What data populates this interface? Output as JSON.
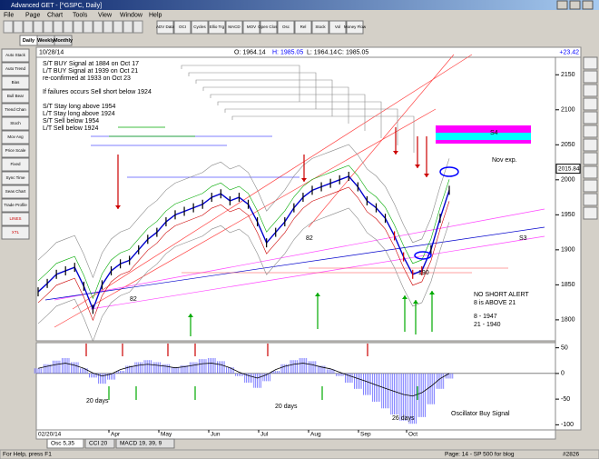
{
  "window": {
    "title": "Advanced GET - [^GSPC, Daily]"
  },
  "menu": [
    "File",
    "Page",
    "Chart",
    "Tools",
    "View",
    "Window",
    "Help"
  ],
  "toolbar": [
    "ADV Data",
    "OCI",
    "Cycles",
    "Ellio Trg",
    "MACD",
    "MOV",
    "Open Close",
    "Osc",
    "Rel",
    "Stock",
    "Vol",
    "Money Flow"
  ],
  "tabs": [
    "Daily",
    "Weekly",
    "Monthly"
  ],
  "left_tools": [
    "Auto Stack",
    "Auto Trend",
    "Bias",
    "Bull Bear",
    "Trend Chan",
    "Stoch",
    "Mov Avg",
    "Price Scale",
    "Fixed",
    "Sync Time",
    "Seas Chart",
    "Trade Profile",
    "LINES",
    "XTL"
  ],
  "info": {
    "date": "10/28/14",
    "open": "O: 1964.14",
    "high": "H: 1985.05",
    "low": "L: 1964.14",
    "close": "C: 1985.05",
    "change": "+23.42"
  },
  "price_panel": {
    "yticks": [
      1800,
      1850,
      1900,
      1950,
      2000,
      2050,
      2100,
      2150
    ],
    "ylim": [
      1770,
      2175
    ],
    "last_label": "2015.84",
    "closes": [
      1840,
      1852,
      1865,
      1870,
      1875,
      1848,
      1815,
      1850,
      1870,
      1880,
      1885,
      1900,
      1915,
      1925,
      1940,
      1950,
      1955,
      1960,
      1965,
      1975,
      1980,
      1970,
      1975,
      1965,
      1940,
      1910,
      1925,
      1940,
      1960,
      1975,
      1985,
      1990,
      1995,
      2000,
      2005,
      1990,
      1970,
      1960,
      1945,
      1920,
      1890,
      1865,
      1870,
      1900,
      1945,
      1985
    ],
    "notes": [
      "S/T BUY Signal at 1884 on Oct 17",
      "L/T BUY Signal at 1939 on Oct 21",
      "re-confirmed at 1933 on Oct 23",
      "If failures occurs Sell short below 1924",
      "S/T Stay long above 1954",
      "L/T Stay long above 1924",
      "S/T Sell below 1954",
      "L/T Sell below 1924"
    ],
    "labels": {
      "low_apr": "82",
      "low_aug": "82",
      "low_oct": "190",
      "s3": "S3",
      "s4": "S4",
      "nov": "Nov exp.",
      "alert1": "NO SHORT ALERT",
      "alert2": "8 is ABOVE 21",
      "ma8": "8   - 1947",
      "ma21": "21 - 1940"
    }
  },
  "osc_panel": {
    "yticks": [
      50,
      0,
      -50,
      -100
    ],
    "ylim": [
      -110,
      60
    ],
    "values": [
      10,
      18,
      25,
      30,
      22,
      10,
      -8,
      -20,
      -12,
      5,
      15,
      22,
      26,
      22,
      18,
      12,
      16,
      22,
      28,
      30,
      24,
      12,
      -5,
      -18,
      -28,
      -15,
      5,
      18,
      26,
      30,
      24,
      15,
      8,
      -5,
      -18,
      -30,
      -42,
      -55,
      -68,
      -80,
      -92,
      -98,
      -85,
      -60,
      -30,
      -10
    ],
    "labels": [
      "20 days",
      "20 days",
      "26 days",
      "Oscillator Buy Signal"
    ]
  },
  "xaxis": {
    "start": "02/20/14",
    "months": [
      "Apr",
      "May",
      "Jun",
      "Jul",
      "Aug",
      "Sep",
      "Oct"
    ]
  },
  "bottom_tabs": [
    "Osc 5,35",
    "CCI 20",
    "MACD 19, 39, 9"
  ],
  "status": {
    "help": "For Help, press F1",
    "page": "Page: 14 - SP 500 for blog",
    "count": "#2826"
  }
}
